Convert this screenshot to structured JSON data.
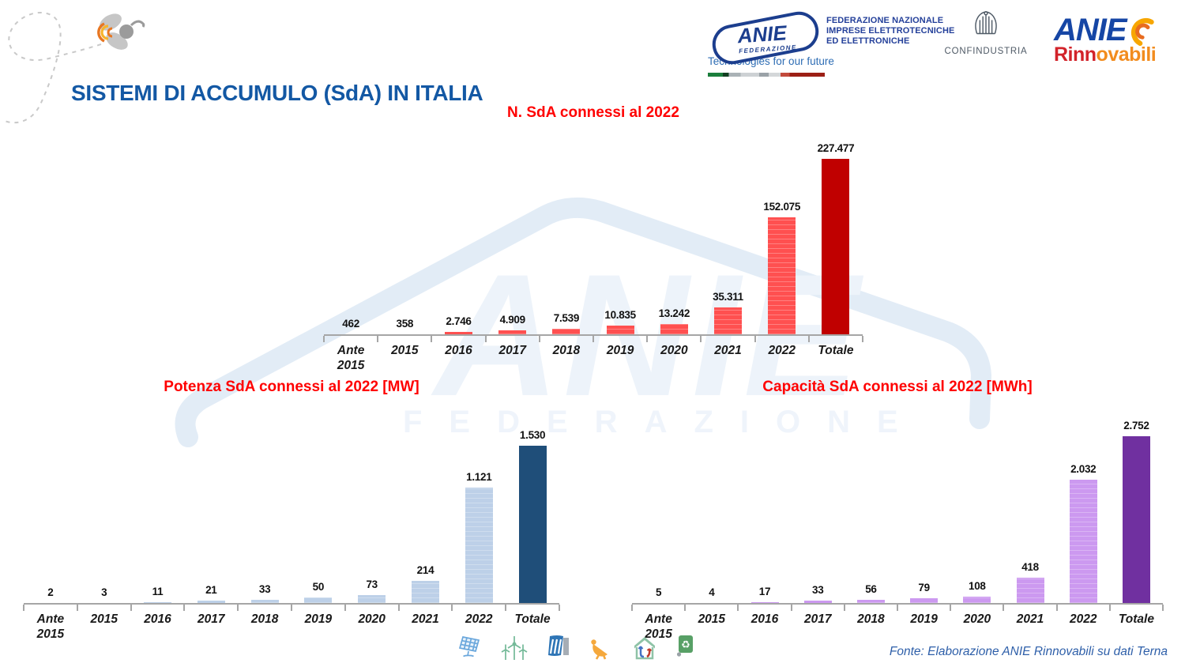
{
  "slide": {
    "title": "SISTEMI DI ACCUMULO (SdA) IN ITALIA",
    "source_note": "Fonte: Elaborazione ANIE Rinnovabili su dati Terna"
  },
  "header_logos": {
    "anie_federazione": {
      "acronym": "ANIE",
      "acronym_sub": "FEDERAZIONE",
      "description_lines": [
        "FEDERAZIONE NAZIONALE",
        "IMPRESE ELETTROTECNICHE",
        "ED ELETTRONICHE"
      ],
      "tagline": "Technologies for our future"
    },
    "confindustria": {
      "label": "CONFINDUSTRIA"
    },
    "anie_rinnovabili": {
      "word1": "ANIE",
      "word2_part1": "Rinn",
      "word2_part2": "ovabili"
    }
  },
  "watermark": {
    "text1": "ANIE",
    "text2": "FEDERAZIONE"
  },
  "decor_icons": [
    "bee-icon",
    "solar-panel-icon",
    "wind-turbine-icon",
    "hydro-dam-icon",
    "solar-dish-icon",
    "house-energy-icon",
    "recycle-bin-icon"
  ],
  "colors": {
    "title_blue": "#1358a4",
    "chart_title_red": "#ff0000",
    "n_sda_bar": "#ff5050",
    "n_sda_total": "#c00000",
    "potenza_bar": "#bdd0e8",
    "potenza_total": "#1f4e79",
    "capacita_bar": "#cc99f0",
    "capacita_total": "#7030a0",
    "axis_gray": "#a6a6a6",
    "footer_blue": "#2e5fa9"
  },
  "chart_data": [
    {
      "id": "n_sda",
      "type": "bar",
      "title": "N. SdA connessi al 2022",
      "categories": [
        "Ante 2015",
        "2015",
        "2016",
        "2017",
        "2018",
        "2019",
        "2020",
        "2021",
        "2022",
        "Totale"
      ],
      "values": [
        462,
        358,
        2746,
        4909,
        7539,
        10835,
        13242,
        35311,
        152075,
        227477
      ],
      "value_labels": [
        "462",
        "358",
        "2.746",
        "4.909",
        "7.539",
        "10.835",
        "13.242",
        "35.311",
        "152.075",
        "227.477"
      ],
      "xlabel": "",
      "ylabel": "",
      "ylim": [
        0,
        250000
      ],
      "grid": false,
      "y_axis_visible": false,
      "legend_position": "none",
      "bar_color": "#ff5050",
      "total_color": "#c00000"
    },
    {
      "id": "potenza",
      "type": "bar",
      "title": "Potenza SdA connessi al 2022 [MW]",
      "categories": [
        "Ante 2015",
        "2015",
        "2016",
        "2017",
        "2018",
        "2019",
        "2020",
        "2021",
        "2022",
        "Totale"
      ],
      "values": [
        2,
        3,
        11,
        21,
        33,
        50,
        73,
        214,
        1121,
        1530
      ],
      "value_labels": [
        "2",
        "3",
        "11",
        "21",
        "33",
        "50",
        "73",
        "214",
        "1.121",
        "1.530"
      ],
      "xlabel": "",
      "ylabel": "",
      "ylim": [
        0,
        1690
      ],
      "grid": false,
      "y_axis_visible": false,
      "legend_position": "none",
      "bar_color": "#bdd0e8",
      "total_color": "#1f4e79"
    },
    {
      "id": "capacita",
      "type": "bar",
      "title": "Capacità SdA connessi al 2022 [MWh]",
      "categories": [
        "Ante 2015",
        "2015",
        "2016",
        "2017",
        "2018",
        "2019",
        "2020",
        "2021",
        "2022",
        "Totale"
      ],
      "values": [
        5,
        4,
        17,
        33,
        56,
        79,
        108,
        418,
        2032,
        2752
      ],
      "value_labels": [
        "5",
        "4",
        "17",
        "33",
        "56",
        "79",
        "108",
        "418",
        "2.032",
        "2.752"
      ],
      "xlabel": "",
      "ylabel": "",
      "ylim": [
        0,
        3050
      ],
      "grid": false,
      "y_axis_visible": false,
      "legend_position": "none",
      "bar_color": "#cc99f0",
      "total_color": "#7030a0"
    }
  ]
}
